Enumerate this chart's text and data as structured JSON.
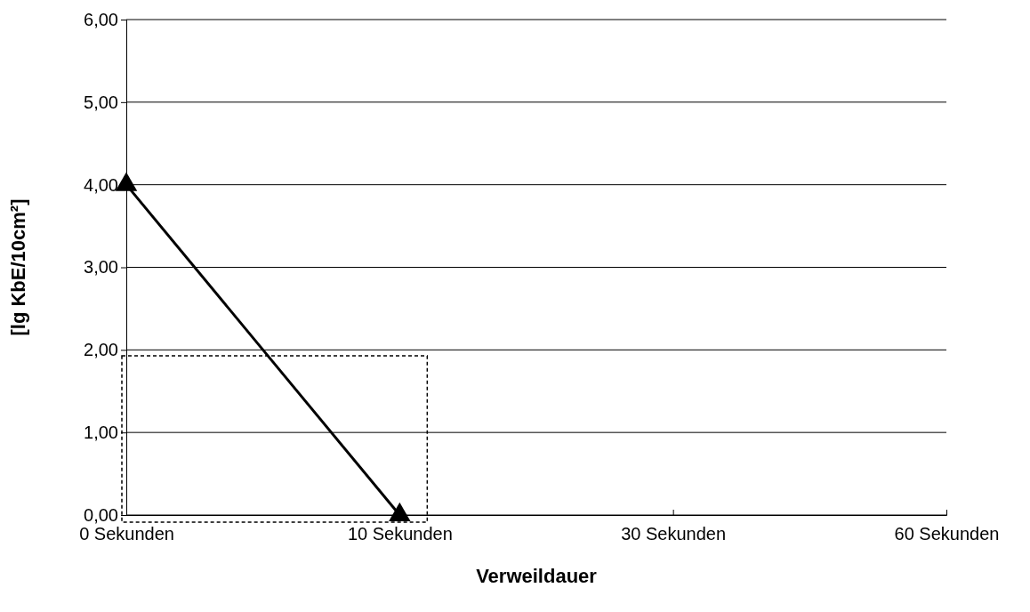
{
  "chart_data": {
    "type": "line",
    "xlabel": "Verweildauer",
    "ylabel": "[lg KbE/10cm²]",
    "categories": [
      "0 Sekunden",
      "10 Sekunden",
      "30 Sekunden",
      "60 Sekunden"
    ],
    "series": [
      {
        "color": "#000000",
        "values": [
          4.0,
          0.0,
          null,
          null
        ]
      }
    ],
    "ylim": [
      0,
      6
    ],
    "yticks": [
      {
        "value": 0,
        "label": "0,00"
      },
      {
        "value": 1,
        "label": "1,00"
      },
      {
        "value": 2,
        "label": "2,00"
      },
      {
        "value": 3,
        "label": "3,00"
      },
      {
        "value": 4,
        "label": "4,00"
      },
      {
        "value": 5,
        "label": "5,00"
      },
      {
        "value": 6,
        "label": "6,00"
      }
    ],
    "grid": "y",
    "marker": "triangle",
    "line_style": "solid"
  }
}
